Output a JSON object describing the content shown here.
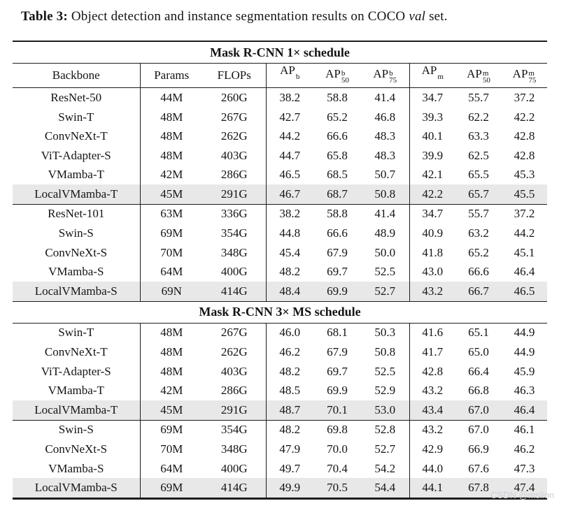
{
  "caption": {
    "label": "Table 3:",
    "body": " Object detection and instance segmentation results on COCO ",
    "emphasis": "val",
    "tail": " set."
  },
  "watermark": {
    "text": "CSDN @mslion"
  },
  "colors": {
    "highlight": "#e8e8e8",
    "rule": "#1c1c1c",
    "text": "#141414",
    "watermark": "#ccd0d6"
  },
  "table": {
    "columns": [
      {
        "text": "Backbone"
      },
      {
        "text": "Params"
      },
      {
        "text": "FLOPs"
      },
      {
        "base": "AP",
        "sup": "b",
        "sub": ""
      },
      {
        "base": "AP",
        "sup": "b",
        "sub": "50"
      },
      {
        "base": "AP",
        "sup": "b",
        "sub": "75"
      },
      {
        "base": "AP",
        "sup": "m",
        "sub": ""
      },
      {
        "base": "AP",
        "sup": "m",
        "sub": "50"
      },
      {
        "base": "AP",
        "sup": "m",
        "sub": "75"
      }
    ],
    "sections": [
      {
        "title": "Mask R-CNN 1× schedule",
        "show_header": true,
        "groups": [
          {
            "rows": [
              {
                "cells": [
                  "ResNet-50",
                  "44M",
                  "260G",
                  "38.2",
                  "58.8",
                  "41.4",
                  "34.7",
                  "55.7",
                  "37.2"
                ],
                "highlight": false
              },
              {
                "cells": [
                  "Swin-T",
                  "48M",
                  "267G",
                  "42.7",
                  "65.2",
                  "46.8",
                  "39.3",
                  "62.2",
                  "42.2"
                ],
                "highlight": false
              },
              {
                "cells": [
                  "ConvNeXt-T",
                  "48M",
                  "262G",
                  "44.2",
                  "66.6",
                  "48.3",
                  "40.1",
                  "63.3",
                  "42.8"
                ],
                "highlight": false
              },
              {
                "cells": [
                  "ViT-Adapter-S",
                  "48M",
                  "403G",
                  "44.7",
                  "65.8",
                  "48.3",
                  "39.9",
                  "62.5",
                  "42.8"
                ],
                "highlight": false
              },
              {
                "cells": [
                  "VMamba-T",
                  "42M",
                  "286G",
                  "46.5",
                  "68.5",
                  "50.7",
                  "42.1",
                  "65.5",
                  "45.3"
                ],
                "highlight": false
              },
              {
                "cells": [
                  "LocalVMamba-T",
                  "45M",
                  "291G",
                  "46.7",
                  "68.7",
                  "50.8",
                  "42.2",
                  "65.7",
                  "45.5"
                ],
                "highlight": true
              }
            ]
          },
          {
            "rows": [
              {
                "cells": [
                  "ResNet-101",
                  "63M",
                  "336G",
                  "38.2",
                  "58.8",
                  "41.4",
                  "34.7",
                  "55.7",
                  "37.2"
                ],
                "highlight": false
              },
              {
                "cells": [
                  "Swin-S",
                  "69M",
                  "354G",
                  "44.8",
                  "66.6",
                  "48.9",
                  "40.9",
                  "63.2",
                  "44.2"
                ],
                "highlight": false
              },
              {
                "cells": [
                  "ConvNeXt-S",
                  "70M",
                  "348G",
                  "45.4",
                  "67.9",
                  "50.0",
                  "41.8",
                  "65.2",
                  "45.1"
                ],
                "highlight": false
              },
              {
                "cells": [
                  "VMamba-S",
                  "64M",
                  "400G",
                  "48.2",
                  "69.7",
                  "52.5",
                  "43.0",
                  "66.6",
                  "46.4"
                ],
                "highlight": false
              },
              {
                "cells": [
                  "LocalVMamba-S",
                  "69N",
                  "414G",
                  "48.4",
                  "69.9",
                  "52.7",
                  "43.2",
                  "66.7",
                  "46.5"
                ],
                "highlight": true
              }
            ]
          }
        ]
      },
      {
        "title": "Mask R-CNN 3× MS schedule",
        "show_header": false,
        "groups": [
          {
            "rows": [
              {
                "cells": [
                  "Swin-T",
                  "48M",
                  "267G",
                  "46.0",
                  "68.1",
                  "50.3",
                  "41.6",
                  "65.1",
                  "44.9"
                ],
                "highlight": false
              },
              {
                "cells": [
                  "ConvNeXt-T",
                  "48M",
                  "262G",
                  "46.2",
                  "67.9",
                  "50.8",
                  "41.7",
                  "65.0",
                  "44.9"
                ],
                "highlight": false
              },
              {
                "cells": [
                  "ViT-Adapter-S",
                  "48M",
                  "403G",
                  "48.2",
                  "69.7",
                  "52.5",
                  "42.8",
                  "66.4",
                  "45.9"
                ],
                "highlight": false
              },
              {
                "cells": [
                  "VMamba-T",
                  "42M",
                  "286G",
                  "48.5",
                  "69.9",
                  "52.9",
                  "43.2",
                  "66.8",
                  "46.3"
                ],
                "highlight": false
              },
              {
                "cells": [
                  "LocalVMamba-T",
                  "45M",
                  "291G",
                  "48.7",
                  "70.1",
                  "53.0",
                  "43.4",
                  "67.0",
                  "46.4"
                ],
                "highlight": true
              }
            ]
          },
          {
            "rows": [
              {
                "cells": [
                  "Swin-S",
                  "69M",
                  "354G",
                  "48.2",
                  "69.8",
                  "52.8",
                  "43.2",
                  "67.0",
                  "46.1"
                ],
                "highlight": false
              },
              {
                "cells": [
                  "ConvNeXt-S",
                  "70M",
                  "348G",
                  "47.9",
                  "70.0",
                  "52.7",
                  "42.9",
                  "66.9",
                  "46.2"
                ],
                "highlight": false
              },
              {
                "cells": [
                  "VMamba-S",
                  "64M",
                  "400G",
                  "49.7",
                  "70.4",
                  "54.2",
                  "44.0",
                  "67.6",
                  "47.3"
                ],
                "highlight": false
              },
              {
                "cells": [
                  "LocalVMamba-S",
                  "69M",
                  "414G",
                  "49.9",
                  "70.5",
                  "54.4",
                  "44.1",
                  "67.8",
                  "47.4"
                ],
                "highlight": true
              }
            ]
          }
        ]
      }
    ]
  }
}
